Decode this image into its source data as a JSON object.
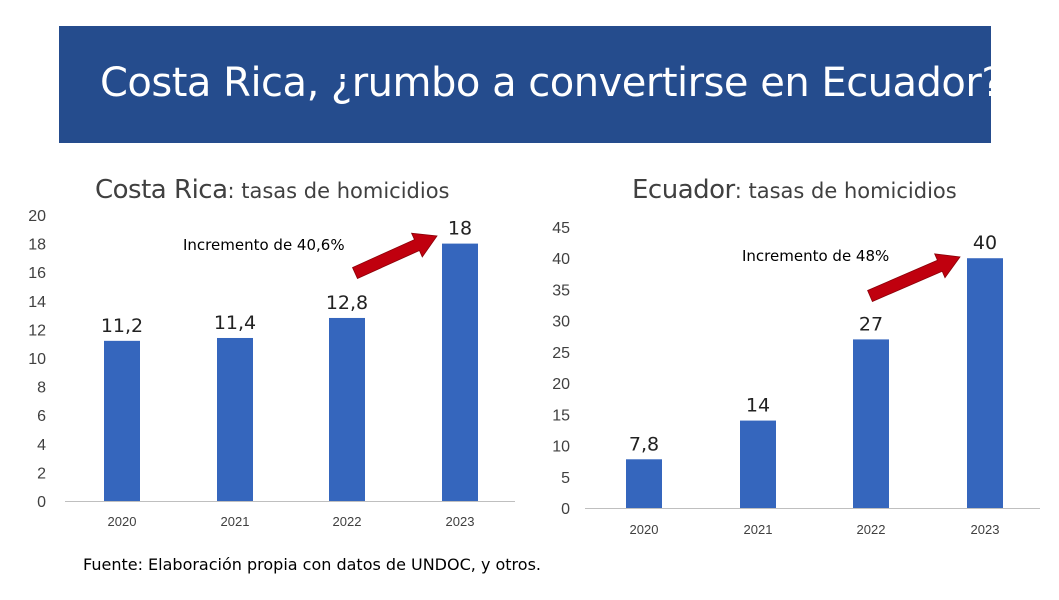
{
  "banner": {
    "title": "Costa Rica, ¿rumbo a convertirse en  Ecuador?"
  },
  "colors": {
    "banner": "#254c8d",
    "bar": "#3566bd",
    "arrow": "#c0000e"
  },
  "chart_data": [
    {
      "type": "bar",
      "title_main": "Costa Rica",
      "title_rest": ": tasas de homicidios",
      "categories": [
        "2020",
        "2021",
        "2022",
        "2023"
      ],
      "values": [
        11.2,
        11.4,
        12.8,
        18
      ],
      "data_labels": [
        "11,2",
        "11,4",
        "12,8",
        "18"
      ],
      "ylim": [
        0,
        20
      ],
      "yticks": [
        "0",
        "2",
        "4",
        "6",
        "8",
        "10",
        "12",
        "14",
        "16",
        "18",
        "20"
      ],
      "annotation": "Incremento de 40,6%",
      "grid": false
    },
    {
      "type": "bar",
      "title_main": "Ecuador",
      "title_rest": ": tasas de homicidios",
      "categories": [
        "2020",
        "2021",
        "2022",
        "2023"
      ],
      "values": [
        7.8,
        14,
        27,
        40
      ],
      "data_labels": [
        "7,8",
        "14",
        "27",
        "40"
      ],
      "ylim": [
        0,
        45
      ],
      "yticks": [
        "0",
        "5",
        "10",
        "15",
        "20",
        "25",
        "30",
        "35",
        "40",
        "45"
      ],
      "annotation": "Incremento de 48%",
      "grid": false
    }
  ],
  "source": "Fuente: Elaboración propia con datos de UNDOC, y otros."
}
